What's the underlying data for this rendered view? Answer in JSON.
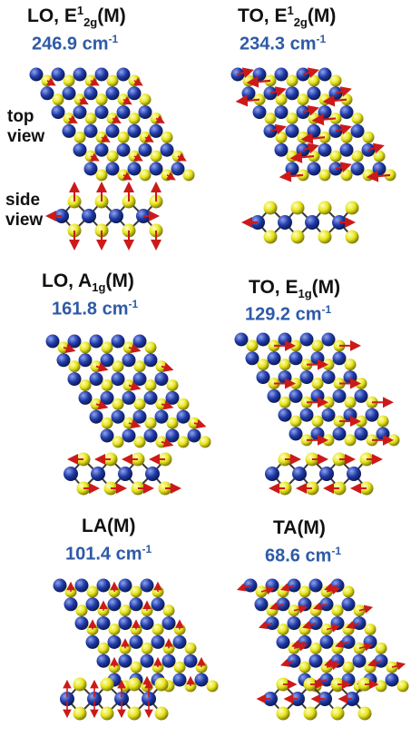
{
  "colors": {
    "metal_atom": "#1f3aa8",
    "chalcogen_atom": "#e6e41c",
    "bond": "#3a3a3a",
    "displacement_arrow": "#cc1a1a",
    "frequency_text": "#2e5aa8"
  },
  "view_labels": {
    "top_line1": "top",
    "top_line2": "view",
    "side_line1": "side",
    "side_line2": "view"
  },
  "modes": [
    {
      "branch": "LO, E",
      "sym_sup": "1",
      "sym_sub": "2g",
      "point": "(M)",
      "frequency": "246.9",
      "unit": "cm",
      "unit_exp": "-1"
    },
    {
      "branch": "TO, E",
      "sym_sup": "1",
      "sym_sub": "2g",
      "point": "(M)",
      "frequency": "234.3",
      "unit": "cm",
      "unit_exp": "-1"
    },
    {
      "branch": "LO, A",
      "sym_sup": "",
      "sym_sub": "1g",
      "point": "(M)",
      "frequency": "161.8",
      "unit": "cm",
      "unit_exp": "-1"
    },
    {
      "branch": "TO, E",
      "sym_sup": "",
      "sym_sub": "1g",
      "point": "(M)",
      "frequency": "129.2",
      "unit": "cm",
      "unit_exp": "-1"
    },
    {
      "branch": "LA",
      "sym_sup": "",
      "sym_sub": "",
      "point": "(M)",
      "frequency": "101.4",
      "unit": "cm",
      "unit_exp": "-1"
    },
    {
      "branch": "TA",
      "sym_sup": "",
      "sym_sub": "",
      "point": "(M)",
      "frequency": "68.6",
      "unit": "cm",
      "unit_exp": "-1"
    }
  ]
}
